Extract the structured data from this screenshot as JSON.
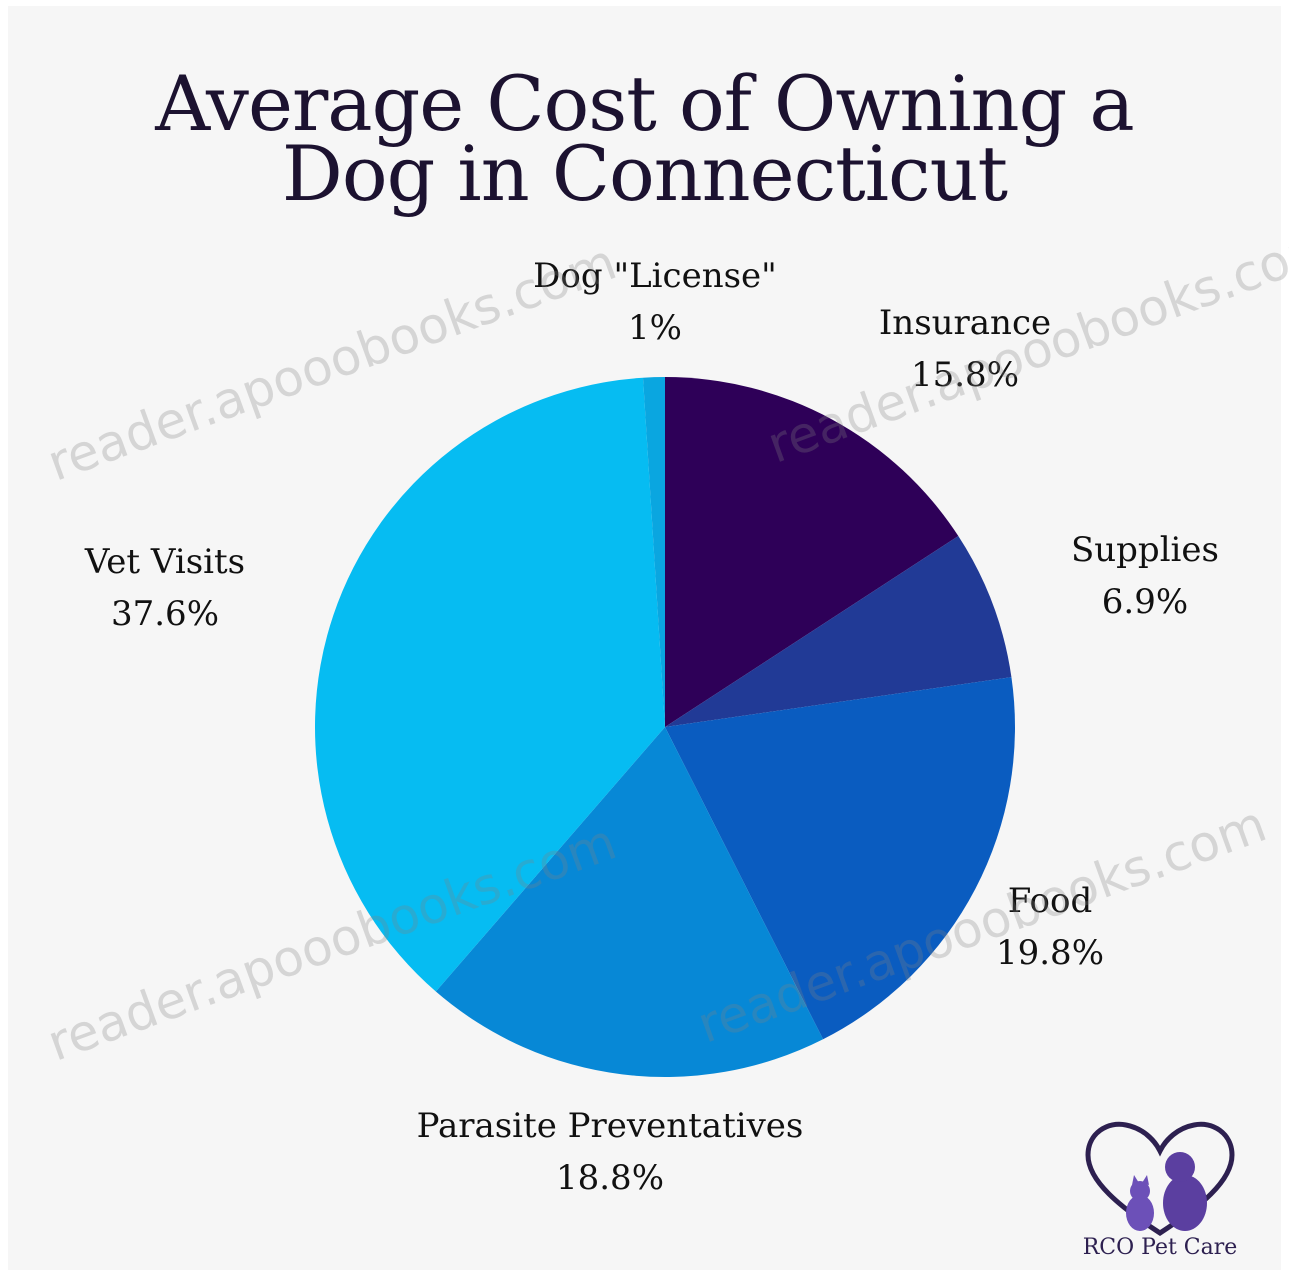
{
  "chart_data": {
    "type": "pie",
    "title_line_1": "Average Cost of Owning a",
    "title_line_2": "Dog in Connecticut",
    "slices": [
      {
        "name": "Insurance",
        "value": 15.8,
        "label": "15.8%",
        "color": "#2e0058"
      },
      {
        "name": "Supplies",
        "value": 6.9,
        "label": "6.9%",
        "color": "#213a96"
      },
      {
        "name": "Food",
        "value": 19.8,
        "label": "19.8%",
        "color": "#0a5cc0"
      },
      {
        "name": "Parasite Preventatives",
        "value": 18.8,
        "label": "18.8%",
        "color": "#0788d6"
      },
      {
        "name": "Vet Visits",
        "value": 37.6,
        "label": "37.6%",
        "color": "#06bcf2"
      },
      {
        "name": "Dog \"License\"",
        "value": 1.0,
        "label": "1%",
        "color": "#0aa6e0"
      }
    ]
  },
  "watermark": "reader.apooobooks.com",
  "logo": {
    "text": "RCO Pet Care",
    "colors": {
      "heart": "#2d2050",
      "pets": "#5b3fa0"
    }
  }
}
